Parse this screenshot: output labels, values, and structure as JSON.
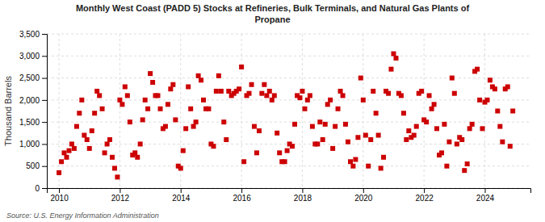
{
  "chart_data": {
    "type": "scatter",
    "title": "Monthly West Coast (PADD 5) Stocks at Refineries, Bulk Terminals, and Natural Gas Plants of\nPropane",
    "ylabel": "Thousand Barrels",
    "source": "Source: U.S. Energy Information Administration",
    "color": "#cc0000",
    "marker": "square",
    "grid": true,
    "xlim": [
      2009.6,
      2025.5
    ],
    "xticks": [
      2010,
      2012,
      2014,
      2016,
      2018,
      2020,
      2022,
      2024
    ],
    "ylim": [
      0,
      3500
    ],
    "yticks": [
      0,
      500,
      {
        "value": 1000,
        "label": "1,000"
      },
      {
        "value": 1500,
        "label": "1,500"
      },
      {
        "value": 2000,
        "label": "2,000"
      },
      {
        "value": 2500,
        "label": "2,500"
      },
      {
        "value": 3000,
        "label": "3,000"
      },
      {
        "value": 3500,
        "label": "3,500"
      }
    ],
    "x": [
      2010.0,
      2010.08,
      2010.17,
      2010.25,
      2010.33,
      2010.42,
      2010.5,
      2010.58,
      2010.67,
      2010.75,
      2010.83,
      2010.92,
      2011.0,
      2011.08,
      2011.17,
      2011.25,
      2011.33,
      2011.42,
      2011.5,
      2011.58,
      2011.67,
      2011.75,
      2011.83,
      2011.92,
      2012.0,
      2012.08,
      2012.17,
      2012.25,
      2012.33,
      2012.42,
      2012.5,
      2012.58,
      2012.67,
      2012.75,
      2012.83,
      2012.92,
      2013.0,
      2013.08,
      2013.17,
      2013.25,
      2013.33,
      2013.42,
      2013.5,
      2013.58,
      2013.67,
      2013.75,
      2013.83,
      2013.92,
      2014.0,
      2014.08,
      2014.17,
      2014.25,
      2014.33,
      2014.42,
      2014.5,
      2014.58,
      2014.67,
      2014.75,
      2014.83,
      2014.92,
      2015.0,
      2015.08,
      2015.17,
      2015.25,
      2015.33,
      2015.42,
      2015.5,
      2015.58,
      2015.67,
      2015.75,
      2015.83,
      2015.92,
      2016.0,
      2016.08,
      2016.17,
      2016.25,
      2016.33,
      2016.42,
      2016.5,
      2016.58,
      2016.67,
      2016.75,
      2016.83,
      2016.92,
      2017.0,
      2017.08,
      2017.17,
      2017.25,
      2017.33,
      2017.42,
      2017.5,
      2017.58,
      2017.67,
      2017.75,
      2017.83,
      2017.92,
      2018.0,
      2018.08,
      2018.17,
      2018.25,
      2018.33,
      2018.42,
      2018.5,
      2018.58,
      2018.67,
      2018.75,
      2018.83,
      2018.92,
      2019.0,
      2019.08,
      2019.17,
      2019.25,
      2019.33,
      2019.42,
      2019.5,
      2019.58,
      2019.67,
      2019.75,
      2019.83,
      2019.92,
      2020.0,
      2020.08,
      2020.17,
      2020.25,
      2020.33,
      2020.42,
      2020.5,
      2020.58,
      2020.67,
      2020.75,
      2020.83,
      2020.92,
      2021.0,
      2021.08,
      2021.17,
      2021.25,
      2021.33,
      2021.42,
      2021.5,
      2021.58,
      2021.67,
      2021.75,
      2021.83,
      2021.92,
      2022.0,
      2022.08,
      2022.17,
      2022.25,
      2022.33,
      2022.42,
      2022.5,
      2022.58,
      2022.67,
      2022.75,
      2022.83,
      2022.92,
      2023.0,
      2023.08,
      2023.17,
      2023.25,
      2023.33,
      2023.42,
      2023.5,
      2023.58,
      2023.67,
      2023.75,
      2023.83,
      2023.92,
      2024.0,
      2024.08,
      2024.17,
      2024.25,
      2024.33,
      2024.42,
      2024.5,
      2024.58,
      2024.67,
      2024.75,
      2024.83,
      2024.92
    ],
    "values": [
      350,
      600,
      800,
      700,
      850,
      1000,
      900,
      1400,
      1700,
      2000,
      1200,
      1100,
      900,
      1300,
      1700,
      2200,
      2100,
      1800,
      800,
      1000,
      1100,
      700,
      450,
      250,
      2000,
      1900,
      2300,
      2100,
      1500,
      750,
      800,
      700,
      1000,
      1550,
      2000,
      1800,
      2600,
      2400,
      2100,
      2100,
      1800,
      1350,
      1400,
      1900,
      2250,
      2350,
      1550,
      500,
      450,
      850,
      1350,
      2300,
      1800,
      1400,
      1500,
      2550,
      2450,
      2000,
      1800,
      1800,
      1000,
      950,
      2200,
      2550,
      2200,
      1500,
      1100,
      2200,
      2100,
      2150,
      2200,
      2250,
      2750,
      600,
      2100,
      2150,
      2350,
      1400,
      800,
      1300,
      2150,
      2350,
      2100,
      2200,
      2000,
      2100,
      1250,
      800,
      600,
      600,
      850,
      1000,
      950,
      1450,
      2100,
      2050,
      2200,
      1800,
      2000,
      2100,
      1400,
      1000,
      1000,
      1500,
      1100,
      1450,
      1900,
      2000,
      900,
      1400,
      1800,
      2200,
      2100,
      1450,
      1050,
      600,
      500,
      650,
      1150,
      2500,
      2000,
      1200,
      500,
      1100,
      2200,
      1700,
      1200,
      450,
      700,
      2200,
      2150,
      2700,
      3050,
      2950,
      2150,
      2100,
      1700,
      1100,
      1300,
      1150,
      1200,
      1400,
      2150,
      2200,
      1550,
      1500,
      2100,
      1800,
      1900,
      1350,
      750,
      800,
      1450,
      500,
      1050,
      2500,
      2150,
      1000,
      1150,
      1100,
      400,
      550,
      1350,
      1450,
      2650,
      2700,
      2000,
      1350,
      1950,
      2000,
      2450,
      2300,
      2250,
      1750,
      1400,
      1050,
      2250,
      2300,
      950,
      1750
    ]
  }
}
